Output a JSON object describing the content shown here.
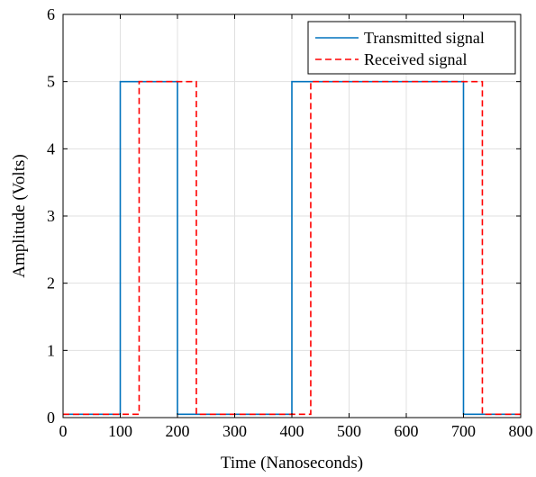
{
  "chart_data": {
    "type": "line",
    "title": "",
    "xlabel": "Time (Nanoseconds)",
    "ylabel": "Amplitude (Volts)",
    "xlim": [
      0,
      800
    ],
    "ylim": [
      0,
      6
    ],
    "xticks": [
      0,
      100,
      200,
      300,
      400,
      500,
      600,
      700,
      800
    ],
    "yticks": [
      0,
      1,
      2,
      3,
      4,
      5,
      6
    ],
    "grid": true,
    "legend_position": "top-right",
    "series": [
      {
        "name": "Transmitted signal",
        "color": "#0072BD",
        "style": "solid",
        "x": [
          0,
          100,
          100,
          200,
          200,
          400,
          400,
          700,
          700,
          800
        ],
        "y": [
          0.05,
          0.05,
          5,
          5,
          0.05,
          0.05,
          5,
          5,
          0.05,
          0.05
        ]
      },
      {
        "name": "Received signal",
        "color": "#FF0000",
        "style": "dashed",
        "x": [
          0,
          133,
          133,
          233,
          233,
          433,
          433,
          733,
          733,
          800
        ],
        "y": [
          0.05,
          0.05,
          5,
          5,
          0.05,
          0.05,
          5,
          5,
          0.05,
          0.05
        ]
      }
    ]
  }
}
